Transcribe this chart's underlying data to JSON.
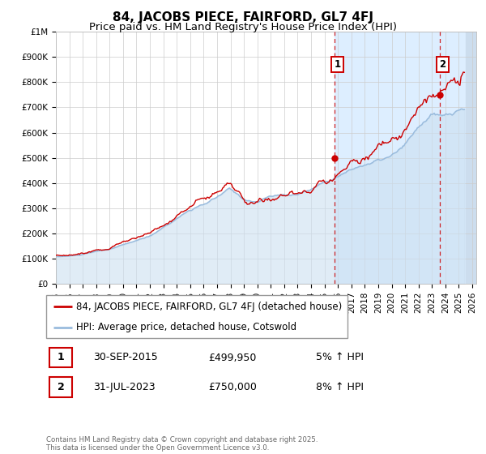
{
  "title": "84, JACOBS PIECE, FAIRFORD, GL7 4FJ",
  "subtitle": "Price paid vs. HM Land Registry's House Price Index (HPI)",
  "ylim": [
    0,
    1000000
  ],
  "xlim_start": 1995.0,
  "xlim_end": 2026.3,
  "yticks": [
    0,
    100000,
    200000,
    300000,
    400000,
    500000,
    600000,
    700000,
    800000,
    900000,
    1000000
  ],
  "ytick_labels": [
    "£0",
    "£100K",
    "£200K",
    "£300K",
    "£400K",
    "£500K",
    "£600K",
    "£700K",
    "£800K",
    "£900K",
    "£1M"
  ],
  "xticks": [
    1995,
    1996,
    1997,
    1998,
    1999,
    2000,
    2001,
    2002,
    2003,
    2004,
    2005,
    2006,
    2007,
    2008,
    2009,
    2010,
    2011,
    2012,
    2013,
    2014,
    2015,
    2016,
    2017,
    2018,
    2019,
    2020,
    2021,
    2022,
    2023,
    2024,
    2025,
    2026
  ],
  "red_line_color": "#cc0000",
  "blue_line_color": "#99bbdd",
  "blue_fill_color": "#cce0f0",
  "shaded_region_color": "#ddeeff",
  "hatch_region_color": "#ccddee",
  "vline_color": "#cc0000",
  "event1_x": 2015.75,
  "event1_label": "1",
  "event1_price": "£499,950",
  "event1_date": "30-SEP-2015",
  "event1_hpi": "5% ↑ HPI",
  "event2_x": 2023.58,
  "event2_label": "2",
  "event2_price": "£750,000",
  "event2_date": "31-JUL-2023",
  "event2_hpi": "8% ↑ HPI",
  "legend_label_red": "84, JACOBS PIECE, FAIRFORD, GL7 4FJ (detached house)",
  "legend_label_blue": "HPI: Average price, detached house, Cotswold",
  "footer": "Contains HM Land Registry data © Crown copyright and database right 2025.\nThis data is licensed under the Open Government Licence v3.0.",
  "background_color": "#ffffff",
  "grid_color": "#cccccc",
  "title_fontsize": 11,
  "subtitle_fontsize": 9.5,
  "tick_fontsize": 7.5,
  "legend_fontsize": 8.5,
  "table_fontsize": 9
}
